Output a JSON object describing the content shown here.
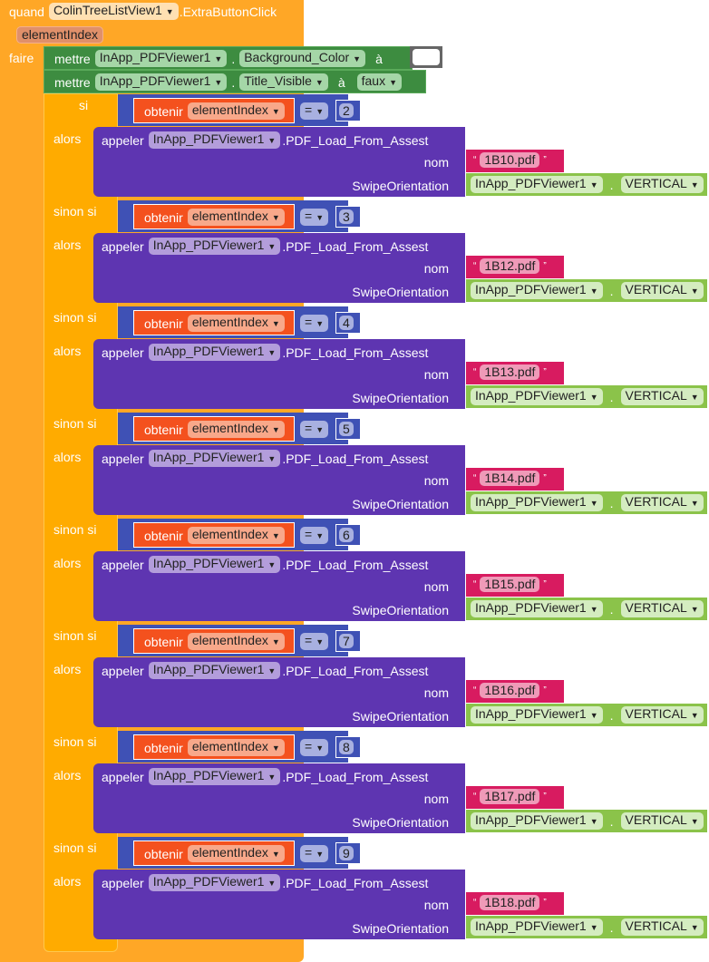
{
  "event": {
    "when": "quand",
    "component": "ColinTreeListView1",
    "event": ".ExtraButtonClick",
    "param": "elementIndex",
    "do": "faire"
  },
  "set1": {
    "keyword": "mettre",
    "component": "InApp_PDFViewer1",
    "property": "Background_Color",
    "to": "à",
    "value_color": "#ffffff"
  },
  "set2": {
    "keyword": "mettre",
    "component": "InApp_PDFViewer1",
    "property": "Title_Visible",
    "to": "à",
    "value": "faux"
  },
  "labels": {
    "if": "si",
    "elseif": "sinon si",
    "then": "alors",
    "get": "obtenir",
    "var": "elementIndex",
    "op": "=",
    "call": "appeler",
    "component": "InApp_PDFViewer1",
    "method": ".PDF_Load_From_Assest",
    "arg1": "nom",
    "arg2": "SwipeOrientation",
    "orientation": "VERTICAL",
    "dot": ".",
    "quote_open": "“",
    "quote_close": "”"
  },
  "branches": [
    {
      "number": "2",
      "file": "1B10.pdf"
    },
    {
      "number": "3",
      "file": "1B12.pdf"
    },
    {
      "number": "4",
      "file": "1B13.pdf"
    },
    {
      "number": "5",
      "file": "1B14.pdf"
    },
    {
      "number": "6",
      "file": "1B15.pdf"
    },
    {
      "number": "7",
      "file": "1B16.pdf"
    },
    {
      "number": "8",
      "file": "1B17.pdf"
    },
    {
      "number": "9",
      "file": "1B18.pdf"
    }
  ],
  "colors": {
    "event": "#ffa726",
    "control": "#ffab00",
    "set": "#3d8c40",
    "compare": "#3f51b5",
    "get": "#f4511e",
    "call": "#5e35b1",
    "text": "#d81b60",
    "enum": "#8bc34a"
  }
}
